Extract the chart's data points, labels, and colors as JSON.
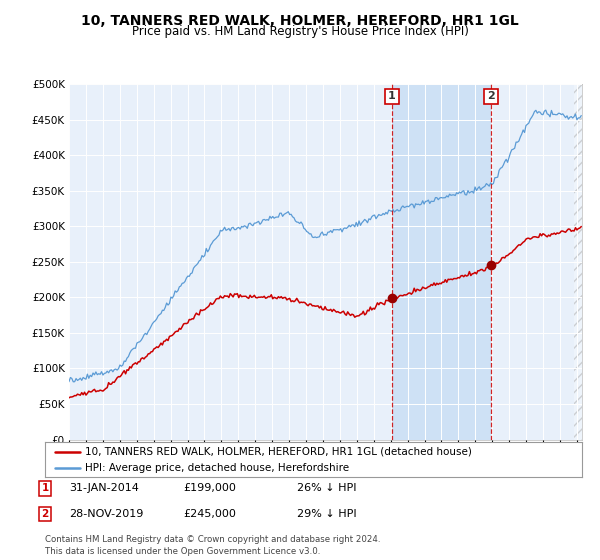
{
  "title": "10, TANNERS RED WALK, HOLMER, HEREFORD, HR1 1GL",
  "subtitle": "Price paid vs. HM Land Registry's House Price Index (HPI)",
  "hpi_color": "#5b9bd5",
  "price_color": "#cc0000",
  "bg_color": "#e8f0fa",
  "shade_color": "#cce0f5",
  "annotation1": {
    "label": "1",
    "x_year": 2014.08,
    "price": 199000,
    "text": "31-JAN-2014",
    "amount": "£199,000",
    "pct": "26% ↓ HPI"
  },
  "annotation2": {
    "label": "2",
    "x_year": 2019.92,
    "price": 245000,
    "text": "28-NOV-2019",
    "amount": "£245,000",
    "pct": "29% ↓ HPI"
  },
  "legend_line1": "10, TANNERS RED WALK, HOLMER, HEREFORD, HR1 1GL (detached house)",
  "legend_line2": "HPI: Average price, detached house, Herefordshire",
  "footnote": "Contains HM Land Registry data © Crown copyright and database right 2024.\nThis data is licensed under the Open Government Licence v3.0.",
  "xmin": 1995.0,
  "xmax": 2025.3,
  "ymin": 0,
  "ymax": 500000
}
